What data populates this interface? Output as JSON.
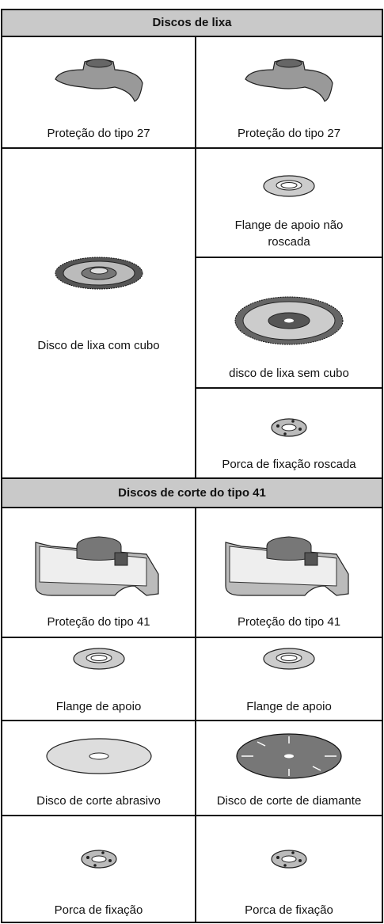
{
  "sections": [
    {
      "title": "Discos de lixa",
      "rows": [
        [
          "Proteção do tipo 27",
          "Proteção do tipo 27"
        ]
      ],
      "merged": {
        "left": "Disco de lixa com cubo",
        "right": [
          "Flange de apoio não roscada",
          "disco de lixa sem cubo",
          "Porca de fixação roscada"
        ]
      }
    },
    {
      "title": "Discos de corte do tipo 41",
      "rows": [
        [
          "Proteção do tipo 41",
          "Proteção do tipo 41"
        ],
        [
          "Flange de apoio",
          "Flange de apoio"
        ],
        [
          "Disco de corte abrasivo",
          "Disco de corte de diamante"
        ],
        [
          "Porca de fixação",
          "Porca de fixação"
        ]
      ]
    }
  ]
}
